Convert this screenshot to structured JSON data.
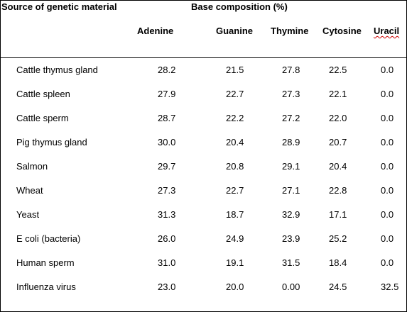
{
  "table": {
    "source_header": "Source of genetic material",
    "composition_header": "Base composition (%)",
    "columns": [
      "Adenine",
      "Guanine",
      "Thymine",
      "Cytosine",
      "Uracil"
    ],
    "rows": [
      {
        "source": "Cattle thymus gland",
        "values": [
          "28.2",
          "21.5",
          "27.8",
          "22.5",
          "0.0"
        ]
      },
      {
        "source": "Cattle spleen",
        "values": [
          "27.9",
          "22.7",
          "27.3",
          "22.1",
          "0.0"
        ]
      },
      {
        "source": "Cattle sperm",
        "values": [
          "28.7",
          "22.2",
          "27.2",
          "22.0",
          "0.0"
        ]
      },
      {
        "source": "Pig thymus gland",
        "values": [
          "30.0",
          "20.4",
          "28.9",
          "20.7",
          "0.0"
        ]
      },
      {
        "source": "Salmon",
        "values": [
          "29.7",
          "20.8",
          "29.1",
          "20.4",
          "0.0"
        ]
      },
      {
        "source": "Wheat",
        "values": [
          "27.3",
          "22.7",
          "27.1",
          "22.8",
          "0.0"
        ]
      },
      {
        "source": "Yeast",
        "values": [
          "31.3",
          "18.7",
          "32.9",
          "17.1",
          "0.0"
        ]
      },
      {
        "source": "E coli (bacteria)",
        "values": [
          "26.0",
          "24.9",
          "23.9",
          "25.2",
          "0.0"
        ]
      },
      {
        "source": "Human sperm",
        "values": [
          "31.0",
          "19.1",
          "31.5",
          "18.4",
          "0.0"
        ]
      },
      {
        "source": "Influenza virus",
        "values": [
          "23.0",
          "20.0",
          "0.00",
          "24.5",
          "32.5"
        ]
      }
    ]
  }
}
